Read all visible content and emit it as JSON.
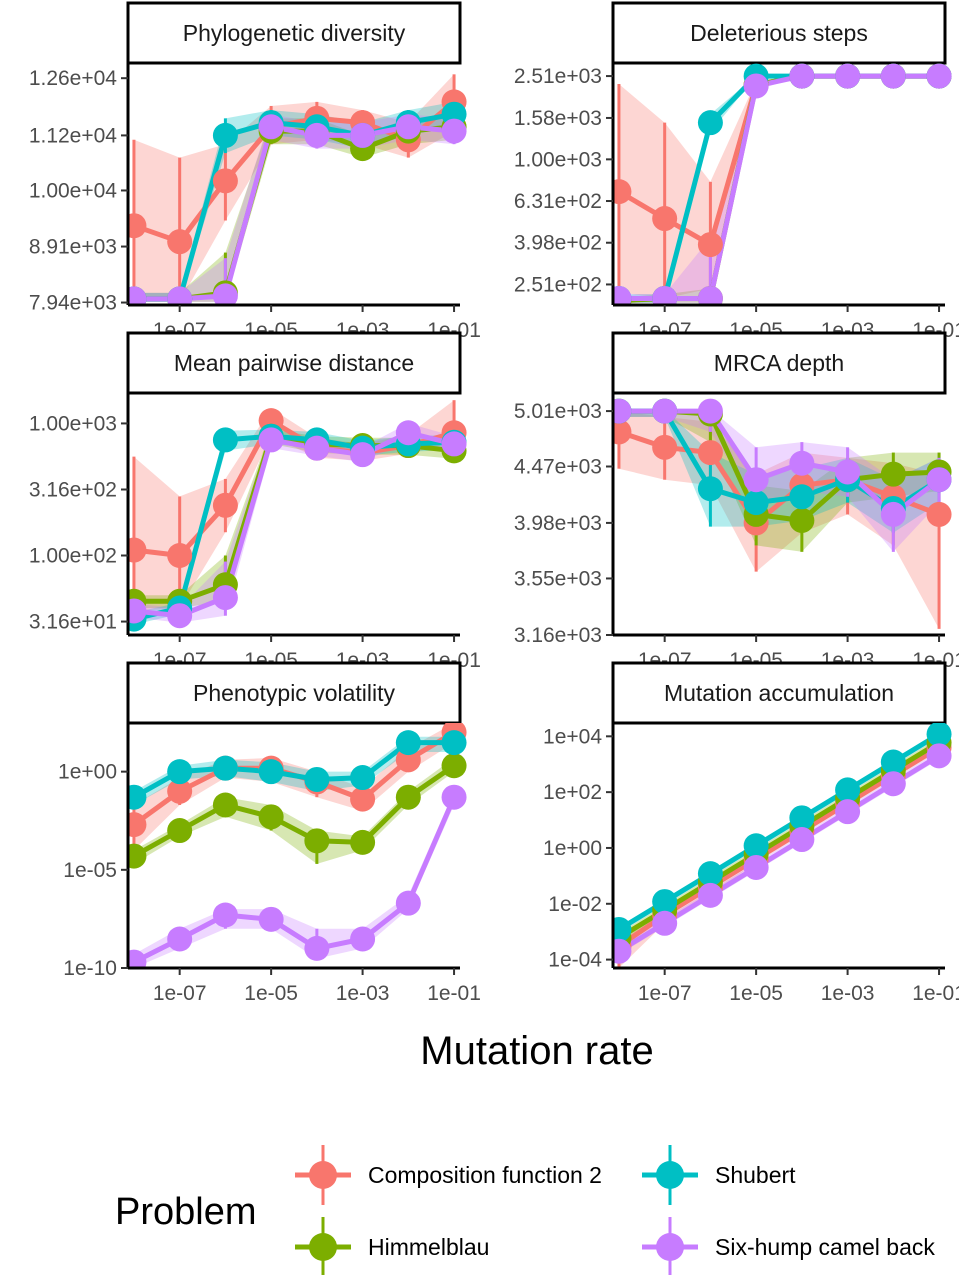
{
  "chart_data": {
    "type": "line",
    "x_label": "Mutation rate",
    "x_scale": "log10",
    "x": [
      1e-08,
      1e-07,
      1e-06,
      1e-05,
      0.0001,
      0.001,
      0.01,
      0.1
    ],
    "x_ticks": [
      1e-07,
      1e-05,
      0.001,
      0.1
    ],
    "x_tick_labels": [
      "1e-07",
      "1e-05",
      "1e-03",
      "1e-01"
    ],
    "grid": false,
    "legend": {
      "title": "Problem",
      "position": "bottom",
      "entries": [
        "Composition function 2",
        "Himmelblau",
        "Shubert",
        "Six-hump camel back"
      ]
    },
    "colors": {
      "Composition function 2": "#F8766D",
      "Himmelblau": "#7CAE00",
      "Shubert": "#00BFC4",
      "Six-hump camel back": "#C77CFF"
    },
    "panels": [
      {
        "title": "Phylogenetic diversity",
        "y_scale": "log10",
        "ylim": [
          7900,
          13000
        ],
        "y_ticks": [
          7940,
          8910,
          10000,
          11200,
          12600
        ],
        "y_tick_labels": [
          "7.94e+03",
          "8.91e+03",
          "1.00e+04",
          "1.12e+04",
          "1.26e+04"
        ],
        "series": [
          {
            "name": "Composition function 2",
            "values": [
              9300,
              9000,
              10200,
              11400,
              11600,
              11500,
              11100,
              12000
            ],
            "lower": [
              8000,
              7950,
              9400,
              11000,
              11100,
              11000,
              10700,
              11300
            ],
            "upper": [
              11100,
              10700,
              11000,
              11900,
              12000,
              11800,
              11500,
              12700
            ]
          },
          {
            "name": "Himmelblau",
            "values": [
              8000,
              8000,
              8100,
              11300,
              11300,
              10900,
              11300,
              11400
            ],
            "lower": [
              7950,
              7950,
              7950,
              11000,
              11000,
              10700,
              11000,
              11100
            ],
            "upper": [
              8100,
              8100,
              8800,
              11600,
              11600,
              11200,
              11600,
              11700
            ]
          },
          {
            "name": "Shubert",
            "values": [
              8000,
              8000,
              11200,
              11500,
              11400,
              11200,
              11500,
              11700
            ],
            "lower": [
              7950,
              7950,
              10800,
              11200,
              11100,
              10900,
              11200,
              11400
            ],
            "upper": [
              8100,
              8100,
              11600,
              11800,
              11700,
              11500,
              11800,
              12000
            ]
          },
          {
            "name": "Six-hump camel back",
            "values": [
              8000,
              8000,
              8050,
              11400,
              11200,
              11200,
              11400,
              11300
            ],
            "lower": [
              7950,
              7950,
              7950,
              11100,
              10900,
              10900,
              11100,
              11000
            ],
            "upper": [
              8100,
              8100,
              8700,
              11700,
              11500,
              11500,
              11700,
              11600
            ]
          }
        ]
      },
      {
        "title": "Deleterious steps",
        "y_scale": "log10",
        "ylim": [
          200,
          2900
        ],
        "y_ticks": [
          251,
          398,
          631,
          1000,
          1580,
          2510
        ],
        "y_tick_labels": [
          "2.51e+02",
          "3.98e+02",
          "6.31e+02",
          "1.00e+03",
          "1.58e+03",
          "2.51e+03"
        ],
        "series": [
          {
            "name": "Composition function 2",
            "values": [
              700,
              520,
              390,
              2280,
              2510,
              2510,
              2510,
              2510
            ],
            "lower": [
              230,
              215,
              240,
              2200,
              2500,
              2500,
              2500,
              2500
            ],
            "upper": [
              2300,
              1500,
              780,
              2380,
              2520,
              2520,
              2520,
              2520
            ]
          },
          {
            "name": "Himmelblau",
            "values": [
              210,
              215,
              215,
              2280,
              2510,
              2510,
              2510,
              2510
            ],
            "lower": [
              205,
              205,
              205,
              2200,
              2500,
              2500,
              2500,
              2500
            ],
            "upper": [
              215,
              225,
              240,
              2380,
              2520,
              2520,
              2520,
              2520
            ]
          },
          {
            "name": "Shubert",
            "values": [
              215,
              215,
              1500,
              2510,
              2510,
              2510,
              2510,
              2510
            ],
            "lower": [
              205,
              205,
              1350,
              2500,
              2500,
              2500,
              2500,
              2500
            ],
            "upper": [
              225,
              225,
              1650,
              2520,
              2520,
              2520,
              2520,
              2520
            ]
          },
          {
            "name": "Six-hump camel back",
            "values": [
              215,
              215,
              215,
              2250,
              2510,
              2510,
              2510,
              2510
            ],
            "lower": [
              205,
              205,
              205,
              2150,
              2500,
              2500,
              2500,
              2500
            ],
            "upper": [
              225,
              225,
              420,
              2380,
              2520,
              2520,
              2520,
              2520
            ]
          }
        ]
      },
      {
        "title": "Mean pairwise distance",
        "y_scale": "log10",
        "ylim": [
          25,
          1700
        ],
        "y_ticks": [
          31.6,
          100,
          316,
          1000
        ],
        "y_tick_labels": [
          "3.16e+01",
          "1.00e+02",
          "3.16e+02",
          "1.00e+03"
        ],
        "series": [
          {
            "name": "Composition function 2",
            "values": [
              110,
              100,
              240,
              1050,
              650,
              600,
              680,
              850
            ],
            "lower": [
              38,
              40,
              150,
              800,
              550,
              520,
              590,
              720
            ],
            "upper": [
              560,
              280,
              380,
              1300,
              780,
              700,
              820,
              1500
            ]
          },
          {
            "name": "Himmelblau",
            "values": [
              45,
              45,
              60,
              800,
              700,
              680,
              680,
              620
            ],
            "lower": [
              40,
              40,
              45,
              700,
              600,
              580,
              580,
              540
            ],
            "upper": [
              50,
              50,
              100,
              900,
              800,
              780,
              780,
              720
            ]
          },
          {
            "name": "Shubert",
            "values": [
              33,
              40,
              750,
              800,
              750,
              650,
              700,
              720
            ],
            "lower": [
              30,
              36,
              620,
              700,
              650,
              570,
              610,
              630
            ],
            "upper": [
              37,
              44,
              880,
              900,
              860,
              740,
              800,
              820
            ]
          },
          {
            "name": "Six-hump camel back",
            "values": [
              38,
              35,
              48,
              750,
              650,
              580,
              850,
              700
            ],
            "lower": [
              34,
              31,
              35,
              650,
              570,
              510,
              740,
              620
            ],
            "upper": [
              43,
              40,
              90,
              860,
              740,
              660,
              1000,
              800
            ]
          }
        ]
      },
      {
        "title": "MRCA depth",
        "y_scale": "log10",
        "ylim": [
          3160,
          5200
        ],
        "y_ticks": [
          3160,
          3550,
          3980,
          4470,
          5010
        ],
        "y_tick_labels": [
          "3.16e+03",
          "3.55e+03",
          "3.98e+03",
          "4.47e+03",
          "5.01e+03"
        ],
        "series": [
          {
            "name": "Composition function 2",
            "values": [
              4800,
              4650,
              4600,
              3980,
              4300,
              4350,
              4200,
              4050
            ],
            "lower": [
              4450,
              4350,
              4300,
              3600,
              3900,
              4050,
              3800,
              3200
            ],
            "upper": [
              5010,
              4950,
              4900,
              4400,
              4600,
              4550,
              4500,
              4400
            ]
          },
          {
            "name": "Himmelblau",
            "values": [
              5010,
              5010,
              4980,
              4050,
              4000,
              4350,
              4400,
              4420
            ],
            "lower": [
              4950,
              4950,
              4700,
              3800,
              3750,
              4150,
              4200,
              4250
            ],
            "upper": [
              5030,
              5030,
              5030,
              4300,
              4250,
              4550,
              4600,
              4600
            ]
          },
          {
            "name": "Shubert",
            "values": [
              5010,
              5010,
              4270,
              4150,
              4200,
              4350,
              4100,
              4350
            ],
            "lower": [
              4950,
              4950,
              3950,
              3950,
              4000,
              4150,
              3900,
              4150
            ],
            "upper": [
              5030,
              5030,
              4600,
              4400,
              4450,
              4550,
              4350,
              4550
            ]
          },
          {
            "name": "Six-hump camel back",
            "values": [
              5010,
              5010,
              5010,
              4350,
              4500,
              4420,
              4050,
              4350
            ],
            "lower": [
              4950,
              4950,
              4800,
              4150,
              4250,
              4200,
              3750,
              4150
            ],
            "upper": [
              5030,
              5030,
              5030,
              4650,
              4700,
              4650,
              4350,
              4550
            ]
          }
        ]
      },
      {
        "title": "Phenotypic volatility",
        "y_scale": "log10",
        "ylim": [
          1e-10,
          300
        ],
        "y_ticks": [
          1e-10,
          1e-05,
          1
        ],
        "y_tick_labels": [
          "1e-10",
          "1e-05",
          "1e+00"
        ],
        "series": [
          {
            "name": "Composition function 2",
            "values": [
              0.002,
              0.1,
              1.5,
              1.5,
              0.3,
              0.04,
              4,
              100
            ],
            "lower": [
              0.0001,
              0.02,
              0.5,
              0.3,
              0.05,
              0.01,
              1,
              30
            ],
            "upper": [
              0.02,
              0.5,
              4,
              5,
              1,
              0.15,
              15,
              300
            ]
          },
          {
            "name": "Himmelblau",
            "values": [
              5e-05,
              0.001,
              0.02,
              0.005,
              0.0003,
              0.00025,
              0.05,
              2
            ],
            "lower": [
              2e-05,
              0.0005,
              0.005,
              0.001,
              2e-05,
              0.0001,
              0.02,
              1
            ],
            "upper": [
              0.0001,
              0.002,
              0.05,
              0.02,
              0.001,
              0.0005,
              0.1,
              5
            ]
          },
          {
            "name": "Shubert",
            "values": [
              0.05,
              1,
              1.5,
              1,
              0.4,
              0.5,
              30,
              30
            ],
            "lower": [
              0.02,
              0.4,
              0.6,
              0.3,
              0.1,
              0.2,
              10,
              10
            ],
            "upper": [
              0.1,
              2,
              4,
              3,
              1,
              1,
              60,
              60
            ]
          },
          {
            "name": "Six-hump camel back",
            "values": [
              2e-10,
              3e-09,
              5e-08,
              3e-08,
              1e-09,
              3e-09,
              2e-07,
              0.05
            ],
            "lower": [
              1e-10,
              1e-09,
              1e-08,
              1e-08,
              3e-10,
              1e-09,
              1e-07,
              0.02
            ],
            "upper": [
              5e-10,
              1e-08,
              1e-07,
              1e-07,
              1e-08,
              1e-08,
              5e-07,
              0.1
            ]
          }
        ]
      },
      {
        "title": "Mutation accumulation",
        "y_scale": "log10",
        "ylim": [
          5e-05,
          30000
        ],
        "y_ticks": [
          0.0001,
          0.01,
          1,
          100,
          10000
        ],
        "y_tick_labels": [
          "1e-04",
          "1e-02",
          "1e+00",
          "1e+02",
          "1e+04"
        ],
        "series": [
          {
            "name": "Composition function 2",
            "values": [
              0.0003,
              0.004,
              0.04,
              0.4,
              4,
              40,
              400,
              4000
            ],
            "lower": [
              5e-05,
              0.002,
              0.02,
              0.3,
              3,
              30,
              300,
              3000
            ],
            "upper": [
              0.0008,
              0.006,
              0.06,
              0.6,
              6,
              60,
              600,
              6000
            ]
          },
          {
            "name": "Himmelblau",
            "values": [
              0.0006,
              0.006,
              0.06,
              0.6,
              6,
              60,
              600,
              6000
            ],
            "lower": [
              0.0004,
              0.004,
              0.04,
              0.4,
              4,
              40,
              400,
              4000
            ],
            "upper": [
              0.0009,
              0.009,
              0.09,
              0.9,
              9,
              90,
              900,
              9000
            ]
          },
          {
            "name": "Shubert",
            "values": [
              0.0012,
              0.012,
              0.12,
              1.2,
              12,
              120,
              1200,
              12000
            ],
            "lower": [
              0.0009,
              0.009,
              0.09,
              0.9,
              9,
              90,
              900,
              9000
            ],
            "upper": [
              0.0015,
              0.015,
              0.15,
              1.5,
              15,
              150,
              1500,
              15000
            ]
          },
          {
            "name": "Six-hump camel back",
            "values": [
              0.0002,
              0.002,
              0.02,
              0.2,
              2,
              20,
              200,
              2000
            ],
            "lower": [
              0.00015,
              0.0015,
              0.015,
              0.15,
              1.5,
              15,
              150,
              1500
            ],
            "upper": [
              0.0003,
              0.003,
              0.03,
              0.3,
              3,
              30,
              300,
              3000
            ]
          }
        ]
      }
    ]
  }
}
